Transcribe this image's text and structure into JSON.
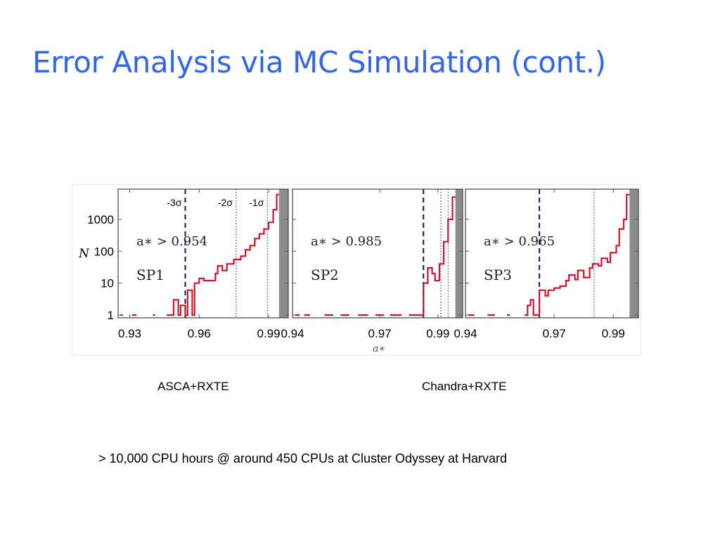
{
  "slide": {
    "title": "Error Analysis via MC Simulation (cont.)",
    "footnote": "> 10,000 CPU hours @ around 450 CPUs at Cluster Odyssey at Harvard"
  },
  "captions": [
    "ASCA+RXTE",
    "Chandra+RXTE"
  ],
  "colors": {
    "title": "#3366e6",
    "histogram": "#d0142c",
    "sigma_line": "#1a2a7a",
    "dotted_line": "#2a3a9a",
    "shade": "#8c8c8c"
  },
  "chart_data": {
    "type": "histogram",
    "ylabel": "N",
    "xlabel": "a_*",
    "yscale": "log",
    "ylim": [
      1,
      8000
    ],
    "y_ticks": [
      {
        "value": 1,
        "label": "1"
      },
      {
        "value": 10,
        "label": "10"
      },
      {
        "value": 100,
        "label": "100"
      },
      {
        "value": 1000,
        "label": "1000"
      }
    ],
    "panels": [
      {
        "name": "SP1",
        "annotation": "a_* > 0.954",
        "xlim": [
          0.925,
          0.9985
        ],
        "x_ticks": [
          {
            "value": 0.93,
            "label": "0.93"
          },
          {
            "value": 0.96,
            "label": "0.96"
          },
          {
            "value": 0.99,
            "label": "0.99"
          }
        ],
        "shaded_from": 0.9945,
        "sigma_lines": [
          {
            "x": 0.954,
            "label": "-3σ",
            "style": "dashed"
          },
          {
            "x": 0.976,
            "label": "-2σ",
            "style": "dotted"
          },
          {
            "x": 0.9895,
            "label": "-1σ",
            "style": "dotted"
          }
        ],
        "histogram": [
          [
            0.926,
            1
          ],
          [
            0.927,
            1
          ],
          [
            0.93,
            0
          ],
          [
            0.931,
            1
          ],
          [
            0.933,
            1
          ],
          [
            0.935,
            0
          ],
          [
            0.94,
            1
          ],
          [
            0.941,
            1
          ],
          [
            0.944,
            0
          ],
          [
            0.946,
            1
          ],
          [
            0.949,
            1
          ],
          [
            0.949,
            3
          ],
          [
            0.951,
            3
          ],
          [
            0.951,
            1
          ],
          [
            0.952,
            1
          ],
          [
            0.952,
            2
          ],
          [
            0.954,
            2
          ],
          [
            0.954,
            1
          ],
          [
            0.955,
            1
          ],
          [
            0.955,
            6
          ],
          [
            0.957,
            6
          ],
          [
            0.957,
            1
          ],
          [
            0.958,
            1
          ],
          [
            0.958,
            10
          ],
          [
            0.96,
            10
          ],
          [
            0.96,
            14
          ],
          [
            0.962,
            14
          ],
          [
            0.962,
            12
          ],
          [
            0.967,
            12
          ],
          [
            0.967,
            20
          ],
          [
            0.968,
            20
          ],
          [
            0.968,
            35
          ],
          [
            0.97,
            35
          ],
          [
            0.97,
            25
          ],
          [
            0.972,
            25
          ],
          [
            0.972,
            40
          ],
          [
            0.975,
            40
          ],
          [
            0.975,
            55
          ],
          [
            0.978,
            55
          ],
          [
            0.978,
            70
          ],
          [
            0.98,
            70
          ],
          [
            0.98,
            110
          ],
          [
            0.982,
            110
          ],
          [
            0.982,
            150
          ],
          [
            0.984,
            150
          ],
          [
            0.984,
            250
          ],
          [
            0.986,
            250
          ],
          [
            0.986,
            350
          ],
          [
            0.988,
            350
          ],
          [
            0.988,
            500
          ],
          [
            0.99,
            500
          ],
          [
            0.99,
            800
          ],
          [
            0.992,
            800
          ],
          [
            0.992,
            2000
          ],
          [
            0.9935,
            2000
          ],
          [
            0.9935,
            6000
          ],
          [
            0.9945,
            6000
          ]
        ]
      },
      {
        "name": "SP2",
        "annotation": "a_* > 0.985",
        "xlim": [
          0.94,
          0.9985
        ],
        "x_ticks": [
          {
            "value": 0.94,
            "label": "0.94"
          },
          {
            "value": 0.97,
            "label": "0.97"
          },
          {
            "value": 0.99,
            "label": "0.99"
          }
        ],
        "shaded_from": 0.996,
        "sigma_lines": [
          {
            "x": 0.985,
            "label": "",
            "style": "dashed"
          },
          {
            "x": 0.991,
            "label": "",
            "style": "dotted"
          },
          {
            "x": 0.9935,
            "label": "",
            "style": "dotted"
          }
        ],
        "histogram": [
          [
            0.941,
            1
          ],
          [
            0.9425,
            1
          ],
          [
            0.943,
            0
          ],
          [
            0.944,
            1
          ],
          [
            0.946,
            1
          ],
          [
            0.946,
            0
          ],
          [
            0.951,
            1
          ],
          [
            0.954,
            1
          ],
          [
            0.955,
            0
          ],
          [
            0.9565,
            1
          ],
          [
            0.9595,
            1
          ],
          [
            0.96,
            0
          ],
          [
            0.9625,
            1
          ],
          [
            0.966,
            1
          ],
          [
            0.9665,
            0
          ],
          [
            0.9685,
            1
          ],
          [
            0.9715,
            1
          ],
          [
            0.972,
            0
          ],
          [
            0.9735,
            1
          ],
          [
            0.9775,
            1
          ],
          [
            0.978,
            0
          ],
          [
            0.98,
            1
          ],
          [
            0.9845,
            1
          ],
          [
            0.985,
            1
          ],
          [
            0.985,
            10
          ],
          [
            0.9865,
            10
          ],
          [
            0.9865,
            30
          ],
          [
            0.988,
            30
          ],
          [
            0.988,
            20
          ],
          [
            0.989,
            20
          ],
          [
            0.989,
            12
          ],
          [
            0.9905,
            12
          ],
          [
            0.9905,
            40
          ],
          [
            0.992,
            40
          ],
          [
            0.992,
            200
          ],
          [
            0.9935,
            200
          ],
          [
            0.9935,
            1000
          ],
          [
            0.995,
            1000
          ],
          [
            0.995,
            5000
          ],
          [
            0.996,
            5000
          ]
        ]
      },
      {
        "name": "SP3",
        "annotation": "a_* > 0.965",
        "xlim": [
          0.94,
          0.9985
        ],
        "x_ticks": [
          {
            "value": 0.94,
            "label": "0.94"
          },
          {
            "value": 0.97,
            "label": "0.97"
          },
          {
            "value": 0.99,
            "label": "0.99"
          }
        ],
        "shaded_from": 0.9955,
        "sigma_lines": [
          {
            "x": 0.965,
            "label": "",
            "style": "dashed"
          },
          {
            "x": 0.9835,
            "label": "",
            "style": "dotted"
          }
        ],
        "histogram": [
          [
            0.941,
            1
          ],
          [
            0.943,
            1
          ],
          [
            0.9435,
            0
          ],
          [
            0.9475,
            1
          ],
          [
            0.95,
            1
          ],
          [
            0.9505,
            0
          ],
          [
            0.954,
            1
          ],
          [
            0.955,
            1
          ],
          [
            0.955,
            0
          ],
          [
            0.96,
            1
          ],
          [
            0.961,
            1
          ],
          [
            0.961,
            2
          ],
          [
            0.962,
            2
          ],
          [
            0.962,
            3
          ],
          [
            0.963,
            3
          ],
          [
            0.963,
            1
          ],
          [
            0.965,
            1
          ],
          [
            0.965,
            6
          ],
          [
            0.967,
            6
          ],
          [
            0.967,
            4
          ],
          [
            0.968,
            4
          ],
          [
            0.968,
            6
          ],
          [
            0.97,
            6
          ],
          [
            0.97,
            7
          ],
          [
            0.972,
            7
          ],
          [
            0.972,
            8
          ],
          [
            0.974,
            8
          ],
          [
            0.974,
            12
          ],
          [
            0.975,
            12
          ],
          [
            0.975,
            18
          ],
          [
            0.977,
            18
          ],
          [
            0.977,
            13
          ],
          [
            0.978,
            13
          ],
          [
            0.978,
            25
          ],
          [
            0.98,
            25
          ],
          [
            0.98,
            15
          ],
          [
            0.982,
            15
          ],
          [
            0.982,
            30
          ],
          [
            0.983,
            30
          ],
          [
            0.983,
            40
          ],
          [
            0.985,
            40
          ],
          [
            0.985,
            35
          ],
          [
            0.986,
            35
          ],
          [
            0.986,
            60
          ],
          [
            0.988,
            60
          ],
          [
            0.988,
            45
          ],
          [
            0.989,
            45
          ],
          [
            0.989,
            90
          ],
          [
            0.991,
            90
          ],
          [
            0.991,
            150
          ],
          [
            0.992,
            150
          ],
          [
            0.992,
            500
          ],
          [
            0.9935,
            500
          ],
          [
            0.9935,
            1000
          ],
          [
            0.9945,
            1000
          ],
          [
            0.9945,
            6000
          ],
          [
            0.9955,
            6000
          ]
        ]
      }
    ]
  }
}
